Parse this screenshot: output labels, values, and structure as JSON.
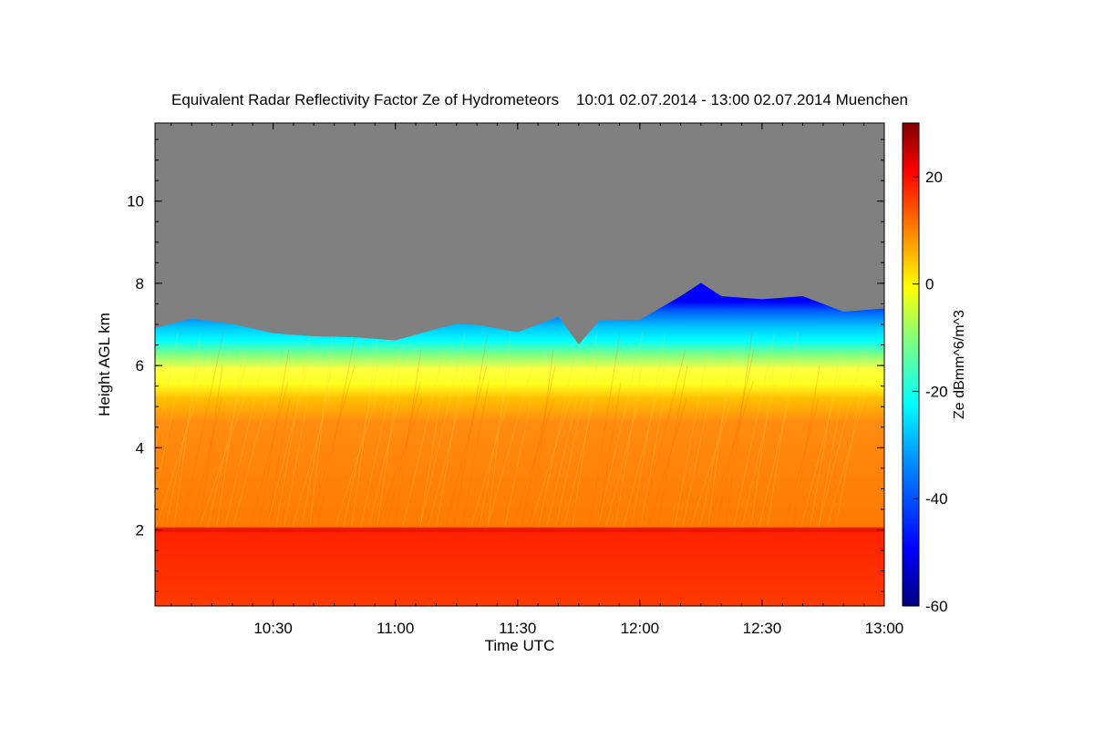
{
  "chart_data": {
    "type": "heatmap",
    "title": "Equivalent Radar Reflectivity Factor Ze of Hydrometeors    10:01 02.07.2014 - 13:00 02.07.2014 Muenchen",
    "xlabel": "Time UTC",
    "ylabel": "Height AGL km",
    "colorbar_label": "Ze dBmm^6/m^3",
    "x_range": [
      "10:01",
      "13:00"
    ],
    "x_ticks": [
      "10:30",
      "11:00",
      "11:30",
      "12:00",
      "12:30",
      "13:00"
    ],
    "y_range": [
      0.15,
      11.9
    ],
    "y_ticks": [
      2,
      4,
      6,
      8,
      10
    ],
    "colorbar_range": [
      -60,
      30
    ],
    "colorbar_ticks": [
      20,
      0,
      -20,
      -40,
      -60
    ],
    "colormap": [
      "#000080",
      "#0000ff",
      "#00a0ff",
      "#00ffff",
      "#80ff80",
      "#ffff00",
      "#ff8000",
      "#ff0000",
      "#800000"
    ],
    "background_color": "#808080",
    "grid": false,
    "cloud_top_km": [
      {
        "time": "10:01",
        "top": 7.0
      },
      {
        "time": "10:10",
        "top": 7.05
      },
      {
        "time": "10:20",
        "top": 7.1
      },
      {
        "time": "10:30",
        "top": 6.7
      },
      {
        "time": "10:40",
        "top": 6.8
      },
      {
        "time": "10:50",
        "top": 6.6
      },
      {
        "time": "11:00",
        "top": 6.7
      },
      {
        "time": "11:10",
        "top": 6.8
      },
      {
        "time": "11:15",
        "top": 7.1
      },
      {
        "time": "11:20",
        "top": 6.9
      },
      {
        "time": "11:30",
        "top": 6.9
      },
      {
        "time": "11:40",
        "top": 7.1
      },
      {
        "time": "11:45",
        "top": 6.6
      },
      {
        "time": "11:50",
        "top": 7.0
      },
      {
        "time": "12:00",
        "top": 7.2
      },
      {
        "time": "12:10",
        "top": 7.6
      },
      {
        "time": "12:15",
        "top": 8.1
      },
      {
        "time": "12:20",
        "top": 7.6
      },
      {
        "time": "12:30",
        "top": 7.7
      },
      {
        "time": "12:40",
        "top": 7.6
      },
      {
        "time": "12:50",
        "top": 7.4
      },
      {
        "time": "13:00",
        "top": 7.3
      }
    ],
    "layers": [
      {
        "from_km": 0.15,
        "to_km": 2.05,
        "ze_dbz": 22
      },
      {
        "from_km": 2.05,
        "to_km": 5.0,
        "ze_dbz": 12
      },
      {
        "from_km": 5.0,
        "to_km": 6.0,
        "ze_dbz": 2
      },
      {
        "from_km": 6.0,
        "to_km": "top",
        "ze_dbz": -20
      }
    ]
  }
}
